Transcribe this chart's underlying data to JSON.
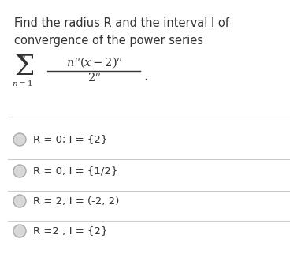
{
  "title_line1": "Find the radius R and the interval I of",
  "title_line2": "convergence of the power series",
  "bg_color": "#ffffff",
  "text_color": "#333333",
  "divider_color": "#cccccc",
  "circle_facecolor": "#d8d8d8",
  "circle_edgecolor": "#aaaaaa",
  "font_size_title": 10.5,
  "font_size_options": 9.5,
  "option_labels": [
    "R = 0; I = {2}",
    "R = 0; I = {1/2}",
    "R = 2; I = (-2, 2)",
    "R =2 ; I = {2}"
  ]
}
